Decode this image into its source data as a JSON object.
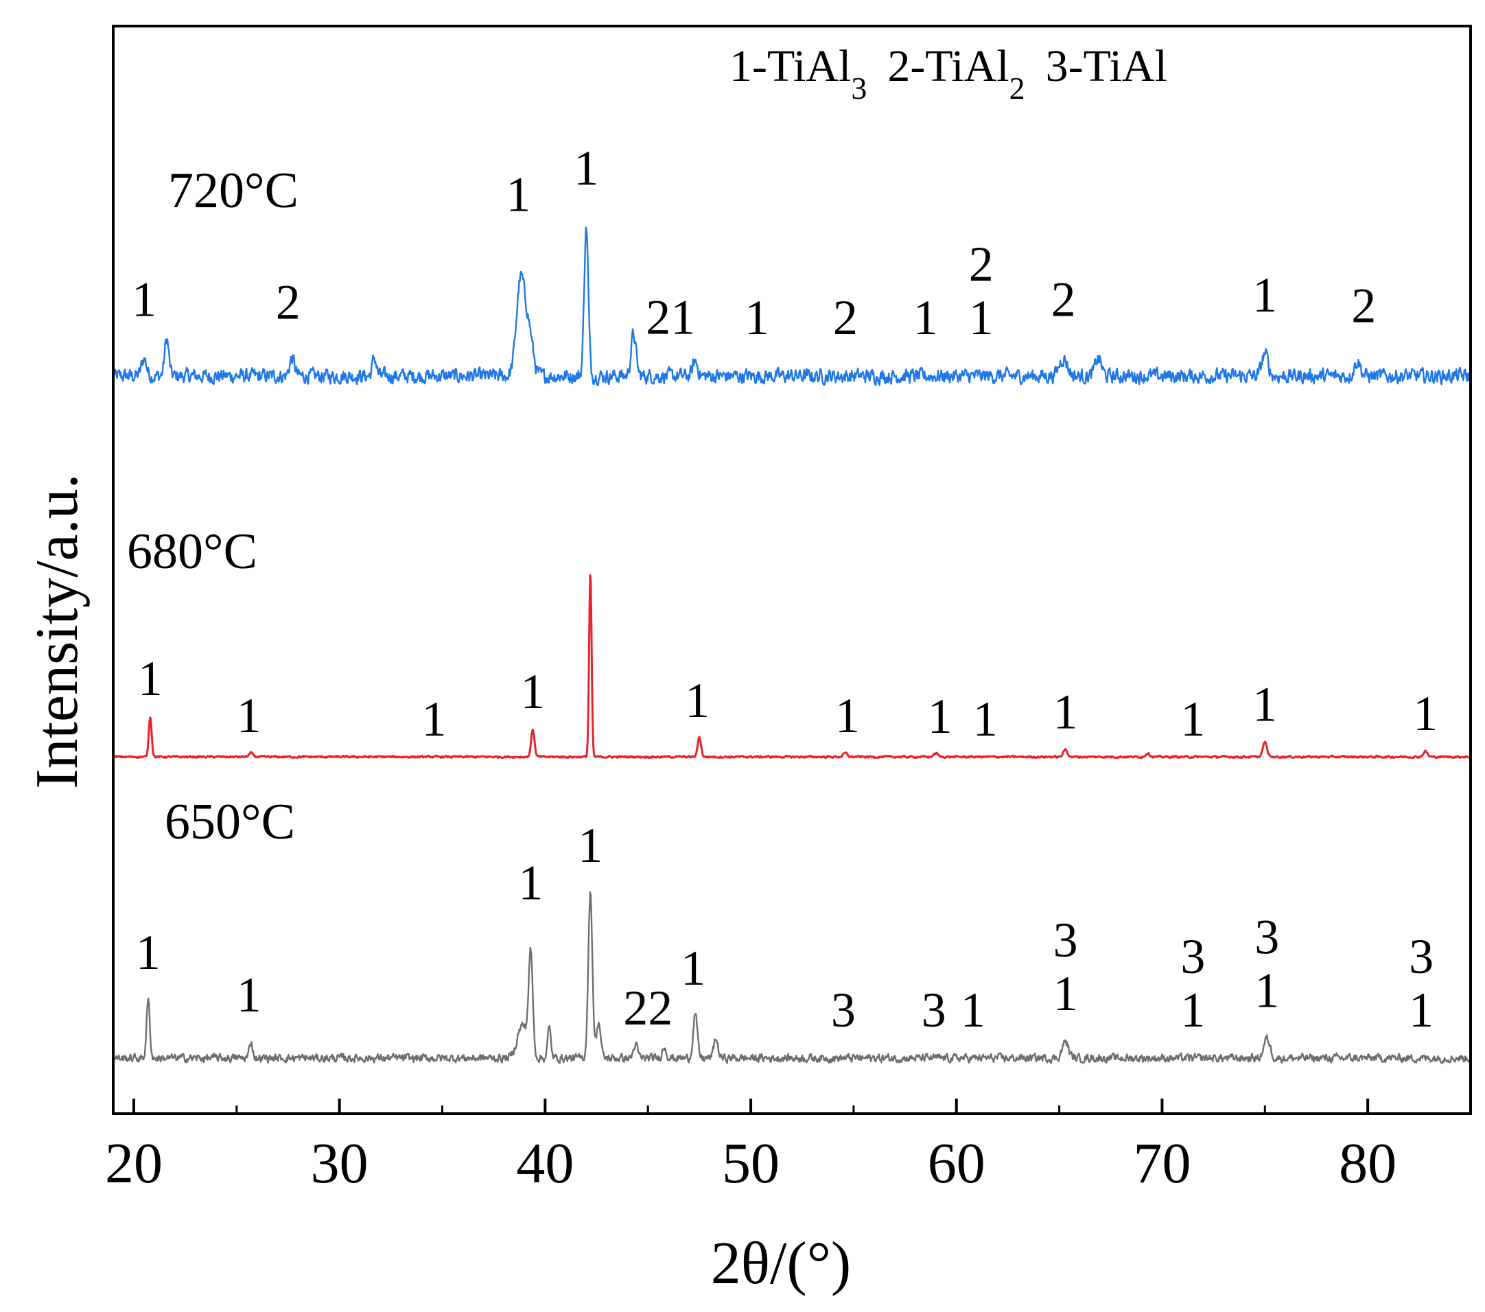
{
  "chart_data": {
    "type": "line",
    "xlabel": "2θ/(°)",
    "ylabel": "Intensity/a.u.",
    "xlim": [
      19,
      85
    ],
    "x_ticks": [
      20,
      30,
      40,
      50,
      60,
      70,
      80
    ],
    "y_ticks_shown": false,
    "grid": false,
    "legend": {
      "placement": "top-right",
      "entries": [
        {
          "number": "1",
          "formula": "TiAl",
          "subscript": "3"
        },
        {
          "number": "2",
          "formula": "TiAl",
          "subscript": "2"
        },
        {
          "number": "3",
          "formula": "TiAl",
          "subscript": ""
        }
      ]
    },
    "series": [
      {
        "name": "720°C",
        "color": "#1f77e8",
        "noise": "high",
        "peaks": [
          {
            "x": 20.5,
            "h": 0.12,
            "w": 0.12
          },
          {
            "x": 21.6,
            "h": 0.25,
            "w": 0.1
          },
          {
            "x": 27.7,
            "h": 0.12,
            "w": 0.12
          },
          {
            "x": 31.7,
            "h": 0.12,
            "w": 0.1
          },
          {
            "x": 38.8,
            "h": 0.62,
            "w": 0.2
          },
          {
            "x": 39.2,
            "h": 0.3,
            "w": 0.2
          },
          {
            "x": 42.0,
            "h": 1.0,
            "w": 0.1
          },
          {
            "x": 44.3,
            "h": 0.28,
            "w": 0.12
          },
          {
            "x": 47.3,
            "h": 0.1,
            "w": 0.12
          },
          {
            "x": 65.2,
            "h": 0.12,
            "w": 0.2
          },
          {
            "x": 66.9,
            "h": 0.12,
            "w": 0.15
          },
          {
            "x": 75.0,
            "h": 0.15,
            "w": 0.15
          },
          {
            "x": 79.5,
            "h": 0.1,
            "w": 0.15
          }
        ],
        "annotations": [
          {
            "x": 20.5,
            "lines": [
              "1"
            ]
          },
          {
            "x": 27.5,
            "lines": [
              "2"
            ]
          },
          {
            "x": 38.7,
            "lines": [
              "1"
            ]
          },
          {
            "x": 42.0,
            "lines": [
              "1"
            ]
          },
          {
            "x": 46.1,
            "lines": [
              "21"
            ]
          },
          {
            "x": 50.3,
            "lines": [
              "1"
            ]
          },
          {
            "x": 54.6,
            "lines": [
              "2"
            ]
          },
          {
            "x": 58.5,
            "lines": [
              "1"
            ]
          },
          {
            "x": 61.2,
            "lines": [
              "2",
              "1"
            ]
          },
          {
            "x": 65.2,
            "lines": [
              "2"
            ]
          },
          {
            "x": 75.0,
            "lines": [
              "1"
            ]
          },
          {
            "x": 79.8,
            "lines": [
              "2"
            ]
          }
        ]
      },
      {
        "name": "680°C",
        "color": "#e8232d",
        "noise": "low",
        "peaks": [
          {
            "x": 20.8,
            "h": 0.22,
            "w": 0.07
          },
          {
            "x": 25.7,
            "h": 0.02,
            "w": 0.1
          },
          {
            "x": 39.4,
            "h": 0.15,
            "w": 0.08
          },
          {
            "x": 42.2,
            "h": 1.0,
            "w": 0.06
          },
          {
            "x": 47.5,
            "h": 0.11,
            "w": 0.08
          },
          {
            "x": 54.6,
            "h": 0.02,
            "w": 0.1
          },
          {
            "x": 59.0,
            "h": 0.02,
            "w": 0.1
          },
          {
            "x": 65.3,
            "h": 0.04,
            "w": 0.1
          },
          {
            "x": 69.3,
            "h": 0.02,
            "w": 0.1
          },
          {
            "x": 75.0,
            "h": 0.08,
            "w": 0.1
          },
          {
            "x": 82.8,
            "h": 0.03,
            "w": 0.1
          }
        ],
        "annotations": [
          {
            "x": 20.8,
            "lines": [
              "1"
            ]
          },
          {
            "x": 25.6,
            "lines": [
              "1"
            ]
          },
          {
            "x": 34.6,
            "lines": [
              "1"
            ]
          },
          {
            "x": 39.4,
            "lines": [
              "1"
            ]
          },
          {
            "x": 47.4,
            "lines": [
              "1"
            ]
          },
          {
            "x": 54.7,
            "lines": [
              "1"
            ]
          },
          {
            "x": 59.2,
            "lines": [
              "1"
            ]
          },
          {
            "x": 61.4,
            "lines": [
              "1"
            ]
          },
          {
            "x": 65.3,
            "lines": [
              "1"
            ]
          },
          {
            "x": 71.5,
            "lines": [
              "1"
            ]
          },
          {
            "x": 75.0,
            "lines": [
              "1"
            ]
          },
          {
            "x": 82.8,
            "lines": [
              "1"
            ]
          }
        ]
      },
      {
        "name": "650°C",
        "color": "#6e6e6e",
        "noise": "medium",
        "peaks": [
          {
            "x": 20.7,
            "h": 0.35,
            "w": 0.08
          },
          {
            "x": 25.7,
            "h": 0.1,
            "w": 0.08
          },
          {
            "x": 38.9,
            "h": 0.2,
            "w": 0.25
          },
          {
            "x": 39.3,
            "h": 0.6,
            "w": 0.1
          },
          {
            "x": 40.2,
            "h": 0.18,
            "w": 0.08
          },
          {
            "x": 42.2,
            "h": 1.0,
            "w": 0.1
          },
          {
            "x": 42.6,
            "h": 0.22,
            "w": 0.1
          },
          {
            "x": 44.4,
            "h": 0.08,
            "w": 0.1
          },
          {
            "x": 45.8,
            "h": 0.07,
            "w": 0.1
          },
          {
            "x": 47.3,
            "h": 0.27,
            "w": 0.1
          },
          {
            "x": 48.3,
            "h": 0.12,
            "w": 0.1
          },
          {
            "x": 65.3,
            "h": 0.1,
            "w": 0.15
          },
          {
            "x": 75.1,
            "h": 0.12,
            "w": 0.15
          }
        ],
        "annotations": [
          {
            "x": 20.7,
            "lines": [
              "1"
            ]
          },
          {
            "x": 25.6,
            "lines": [
              "1"
            ]
          },
          {
            "x": 39.3,
            "lines": [
              "1"
            ]
          },
          {
            "x": 42.2,
            "lines": [
              "1"
            ]
          },
          {
            "x": 45.0,
            "lines": [
              "22"
            ]
          },
          {
            "x": 47.2,
            "lines": [
              "1"
            ]
          },
          {
            "x": 54.5,
            "lines": [
              "3"
            ]
          },
          {
            "x": 58.9,
            "lines": [
              "3"
            ]
          },
          {
            "x": 60.8,
            "lines": [
              "1"
            ]
          },
          {
            "x": 65.3,
            "lines": [
              "3",
              "1"
            ]
          },
          {
            "x": 71.5,
            "lines": [
              "3",
              "1"
            ]
          },
          {
            "x": 75.1,
            "lines": [
              "3",
              "1"
            ]
          },
          {
            "x": 82.6,
            "lines": [
              "3",
              "1"
            ]
          }
        ]
      }
    ]
  }
}
